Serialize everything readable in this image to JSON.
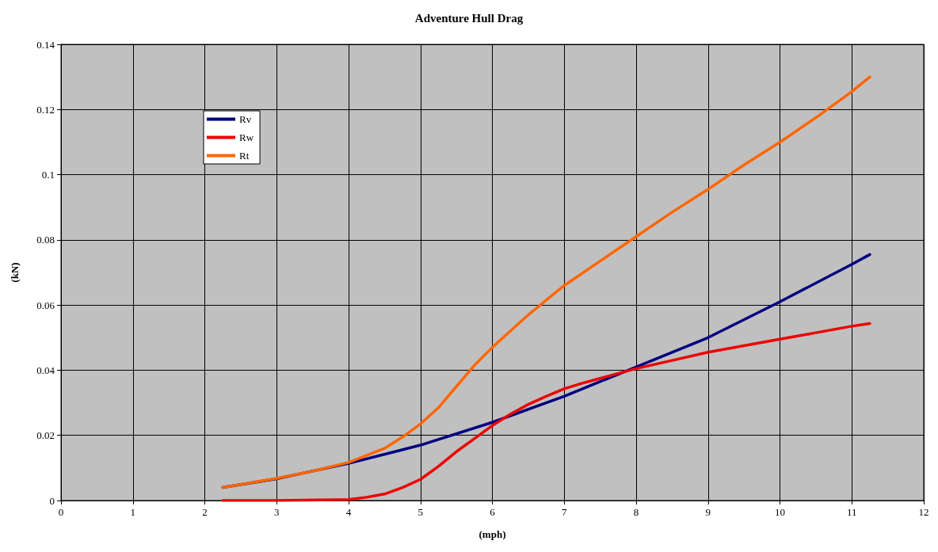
{
  "chart_data": {
    "type": "line",
    "title": "Adventure Hull Drag",
    "xlabel": "(mph)",
    "ylabel": "(kN)",
    "xlim": [
      0,
      12
    ],
    "xticks": [
      0,
      1,
      2,
      3,
      4,
      5,
      6,
      7,
      8,
      9,
      10,
      11,
      12
    ],
    "ylim": [
      0,
      0.14
    ],
    "yticks": [
      0,
      0.02,
      0.04,
      0.06,
      0.08,
      0.1,
      0.12,
      0.14
    ],
    "grid": true,
    "legend": "top left",
    "marker": "none",
    "line_style": "solid",
    "series": [
      {
        "name": "Rv",
        "color": "#000080",
        "x": [
          2.25,
          3,
          4,
          5,
          6,
          7,
          8,
          9,
          10,
          11,
          11.25
        ],
        "values": [
          0.004,
          0.0067,
          0.0114,
          0.017,
          0.024,
          0.032,
          0.041,
          0.05,
          0.061,
          0.0725,
          0.0755
        ]
      },
      {
        "name": "Rw",
        "color": "#ee0000",
        "x": [
          2.25,
          3,
          4,
          4.25,
          4.5,
          4.75,
          5,
          5.25,
          5.5,
          5.75,
          6,
          6.25,
          6.5,
          6.75,
          7,
          7.25,
          7.5,
          8,
          8.5,
          9,
          9.5,
          10,
          10.5,
          11,
          11.25
        ],
        "values": [
          0,
          0,
          0.0003,
          0.001,
          0.002,
          0.004,
          0.0065,
          0.0105,
          0.015,
          0.019,
          0.023,
          0.0265,
          0.0295,
          0.032,
          0.0343,
          0.036,
          0.0375,
          0.0405,
          0.043,
          0.0455,
          0.0475,
          0.0495,
          0.0515,
          0.0535,
          0.0543
        ]
      },
      {
        "name": "Rt",
        "color": "#ff6600",
        "x": [
          2.25,
          3,
          3.5,
          4,
          4.5,
          4.75,
          5,
          5.25,
          5.5,
          5.75,
          6,
          6.25,
          6.5,
          6.75,
          7,
          7.5,
          8,
          8.5,
          9,
          9.5,
          10,
          10.5,
          11,
          11.25
        ],
        "values": [
          0.004,
          0.0068,
          0.009,
          0.0117,
          0.016,
          0.0195,
          0.0235,
          0.0285,
          0.035,
          0.0415,
          0.047,
          0.052,
          0.057,
          0.0615,
          0.066,
          0.0735,
          0.081,
          0.0885,
          0.0955,
          0.103,
          0.11,
          0.1175,
          0.1255,
          0.13
        ]
      }
    ]
  }
}
